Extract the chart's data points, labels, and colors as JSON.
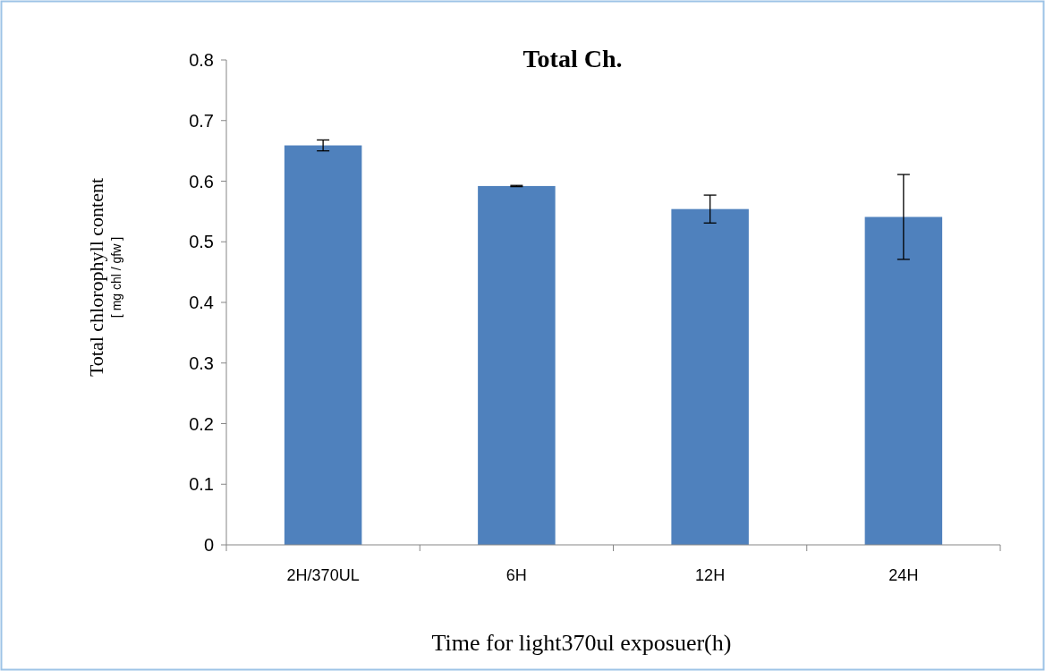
{
  "chart_data": {
    "type": "bar",
    "title": "Total Ch.",
    "xlabel": "Time for light370ul exposuer(h)",
    "ylabel": "Total chlorophyll content\n[ mg chl / gfw ]",
    "categories": [
      "2H/370UL",
      "6H",
      "12H",
      "24H"
    ],
    "values": [
      0.659,
      0.592,
      0.554,
      0.541
    ],
    "errors": [
      0.009,
      0.001,
      0.023,
      0.07
    ],
    "color": "#4f81bd",
    "ylim": [
      0,
      0.8
    ],
    "yticks": [
      0,
      0.1,
      0.2,
      0.3,
      0.4,
      0.5,
      0.6,
      0.7,
      0.8
    ],
    "grid": false
  }
}
